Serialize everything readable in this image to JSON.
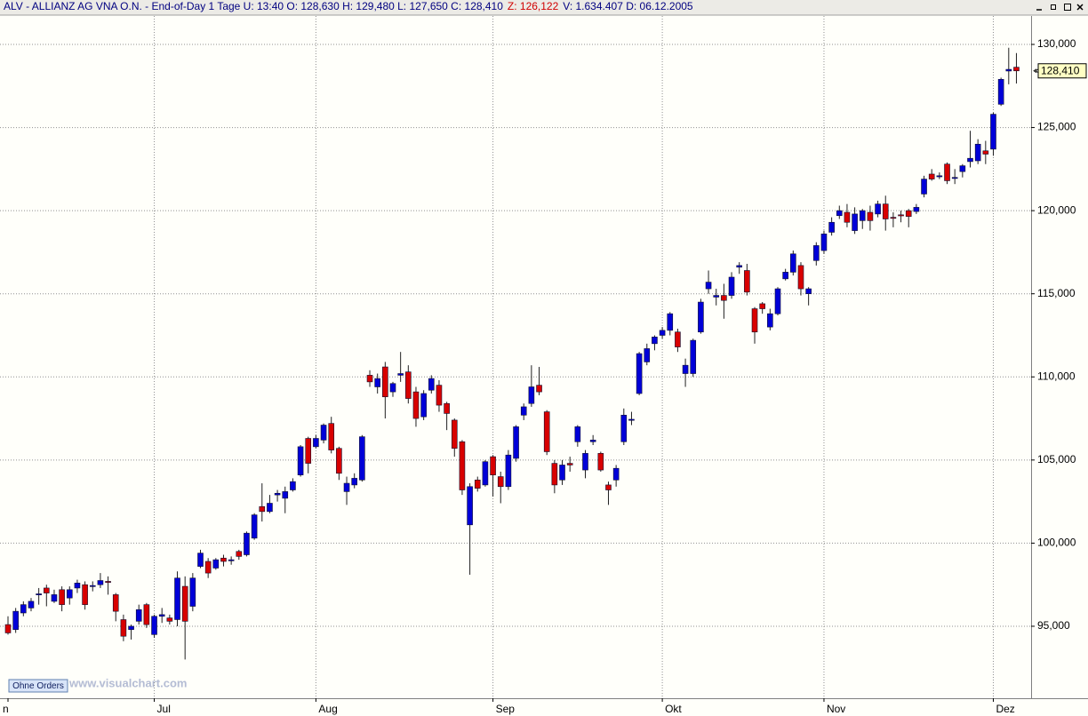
{
  "chart_data": {
    "type": "candlestick",
    "title": "ALV - ALLIANZ AG VNA O.N. - End-of-Day 1 Tage U: 13:40 O: 128,630 H: 129,480 L: 127,650 C: 128,410",
    "title_z": "Z: 126,122",
    "title_tail": "V: 1.634.407 D: 06.12.2005",
    "button": "Ohne Orders",
    "watermark": "www.visualchart.com",
    "up_color": "#0000d8",
    "down_color": "#d80000",
    "grid": true,
    "ylim": [
      90.67,
      131.71
    ],
    "yticks": [
      {
        "value": 95,
        "label": "95,000"
      },
      {
        "value": 100,
        "label": "100,000"
      },
      {
        "value": 105,
        "label": "105,000"
      },
      {
        "value": 110,
        "label": "110,000"
      },
      {
        "value": 115,
        "label": "115,000"
      },
      {
        "value": 120,
        "label": "120,000"
      },
      {
        "value": 125,
        "label": "125,000"
      },
      {
        "value": 130,
        "label": "130,000"
      }
    ],
    "last_price": {
      "value": 128.41,
      "label": "128,410"
    },
    "categories": [
      "n",
      null,
      null,
      null,
      null,
      null,
      null,
      null,
      null,
      null,
      null,
      null,
      null,
      null,
      null,
      null,
      null,
      null,
      null,
      "Jul",
      null,
      null,
      null,
      null,
      null,
      null,
      null,
      null,
      null,
      null,
      null,
      null,
      null,
      null,
      null,
      null,
      null,
      null,
      null,
      null,
      "Aug",
      null,
      null,
      null,
      null,
      null,
      null,
      null,
      null,
      null,
      null,
      null,
      null,
      null,
      null,
      null,
      null,
      null,
      null,
      null,
      null,
      null,
      null,
      "Sep",
      null,
      null,
      null,
      null,
      null,
      null,
      null,
      null,
      null,
      null,
      null,
      null,
      null,
      null,
      null,
      null,
      null,
      null,
      null,
      null,
      null,
      "Okt",
      null,
      null,
      null,
      null,
      null,
      null,
      null,
      null,
      null,
      null,
      null,
      null,
      null,
      null,
      null,
      null,
      null,
      null,
      null,
      null,
      "Nov",
      null,
      null,
      null,
      null,
      null,
      null,
      null,
      null,
      null,
      null,
      null,
      null,
      null,
      null,
      null,
      null,
      null,
      null,
      null,
      null,
      null,
      "Dez",
      null,
      null,
      null
    ],
    "open": [
      95.1,
      94.8,
      95.8,
      96.1,
      96.9,
      97.3,
      96.5,
      97.2,
      96.7,
      97.3,
      97.5,
      97.4,
      97.5,
      97.7,
      96.9,
      95.4,
      94.8,
      95.3,
      96.3,
      94.5,
      95.6,
      95.5,
      95.4,
      97.4,
      96.2,
      98.6,
      98.9,
      98.5,
      99.1,
      98.95,
      99.5,
      99.3,
      100.3,
      102.2,
      101.9,
      102.9,
      102.7,
      103.2,
      104.1,
      106.3,
      105.8,
      106.2,
      107.2,
      105.7,
      103.1,
      103.5,
      103.8,
      110.1,
      109.4,
      110.6,
      109.1,
      110.1,
      110.3,
      109.1,
      107.6,
      109.2,
      109.5,
      108.4,
      107.4,
      106.1,
      101.1,
      103.8,
      103.5,
      105.2,
      104.0,
      103.4,
      105.1,
      107.7,
      108.4,
      109.5,
      107.9,
      104.8,
      103.8,
      104.8,
      106.1,
      104.4,
      106.1,
      105.4,
      103.5,
      103.8,
      106.1,
      107.4,
      109.0,
      110.9,
      112.0,
      112.5,
      112.8,
      112.7,
      110.2,
      110.2,
      112.7,
      115.3,
      114.8,
      114.9,
      114.9,
      116.6,
      116.4,
      114.1,
      114.4,
      113.0,
      113.8,
      115.9,
      116.3,
      116.7,
      115.0,
      117.0,
      117.6,
      118.7,
      119.7,
      119.9,
      118.8,
      119.4,
      119.9,
      119.8,
      120.4,
      119.6,
      119.75,
      120.0,
      119.95,
      121.0,
      122.2,
      122.05,
      122.8,
      121.95,
      122.35,
      122.95,
      123.0,
      123.6,
      123.7,
      126.4,
      128.4,
      128.63
    ],
    "high": [
      95.6,
      96.1,
      96.5,
      96.7,
      97.3,
      97.5,
      97.2,
      97.4,
      97.4,
      97.8,
      97.7,
      97.7,
      98.2,
      98.0,
      97.0,
      95.7,
      95.1,
      96.3,
      96.4,
      95.7,
      96.1,
      95.7,
      98.3,
      98.0,
      98.2,
      99.6,
      99.1,
      99.1,
      99.3,
      99.2,
      99.6,
      100.7,
      101.8,
      103.6,
      102.9,
      103.2,
      103.4,
      103.9,
      105.9,
      106.4,
      106.5,
      107.2,
      107.6,
      105.8,
      104.0,
      104.2,
      106.5,
      110.4,
      110.2,
      110.9,
      109.7,
      111.5,
      110.7,
      109.4,
      109.2,
      110.1,
      109.8,
      108.5,
      107.5,
      106.2,
      103.6,
      104.0,
      105.0,
      105.3,
      104.3,
      105.6,
      107.1,
      108.4,
      110.7,
      110.6,
      108.0,
      105.0,
      105.0,
      105.2,
      107.1,
      105.6,
      106.5,
      105.5,
      103.7,
      104.7,
      108.1,
      107.9,
      111.5,
      112.0,
      112.5,
      113.0,
      113.9,
      112.9,
      111.1,
      112.3,
      114.7,
      116.4,
      115.3,
      115.6,
      116.3,
      116.9,
      116.8,
      114.2,
      114.5,
      114.1,
      115.4,
      116.5,
      117.6,
      116.9,
      115.4,
      118.1,
      118.8,
      119.6,
      120.3,
      120.4,
      120.2,
      120.1,
      120.3,
      120.6,
      120.9,
      119.9,
      120.0,
      120.1,
      120.4,
      122.1,
      122.5,
      122.3,
      122.9,
      122.5,
      122.8,
      124.8,
      124.3,
      124.2,
      125.9,
      128.0,
      129.8,
      129.48
    ],
    "low": [
      94.5,
      94.6,
      95.6,
      95.9,
      96.3,
      96.2,
      96.4,
      95.9,
      96.3,
      97.0,
      96.0,
      97.1,
      97.3,
      96.9,
      95.3,
      94.1,
      94.2,
      95.1,
      94.9,
      94.3,
      95.2,
      95.1,
      95.0,
      93.0,
      95.9,
      98.5,
      97.9,
      98.4,
      98.6,
      98.7,
      99.0,
      99.2,
      100.2,
      101.3,
      101.8,
      102.5,
      101.8,
      103.1,
      104.0,
      104.2,
      105.7,
      106.0,
      105.4,
      103.8,
      102.3,
      103.3,
      103.7,
      109.4,
      109.0,
      107.5,
      108.8,
      109.7,
      108.4,
      107.0,
      107.4,
      109.0,
      107.9,
      106.8,
      105.2,
      102.9,
      98.1,
      103.1,
      103.4,
      102.8,
      102.4,
      103.2,
      104.9,
      107.4,
      108.2,
      108.9,
      105.3,
      103.0,
      103.5,
      104.3,
      105.8,
      103.9,
      105.9,
      104.3,
      102.3,
      103.4,
      105.9,
      107.1,
      108.9,
      110.7,
      111.6,
      112.3,
      112.5,
      111.5,
      109.4,
      110.0,
      112.6,
      115.0,
      114.3,
      113.5,
      114.7,
      116.2,
      114.9,
      112.0,
      113.8,
      112.8,
      113.7,
      115.8,
      116.1,
      114.9,
      114.3,
      116.7,
      117.4,
      118.5,
      119.5,
      119.0,
      118.6,
      118.9,
      118.8,
      119.6,
      118.8,
      119.0,
      119.3,
      119.0,
      119.8,
      120.8,
      121.8,
      121.9,
      121.6,
      121.6,
      122.0,
      122.6,
      122.8,
      122.8,
      123.3,
      126.3,
      127.6,
      127.65
    ],
    "close": [
      94.6,
      95.9,
      96.3,
      96.5,
      96.95,
      97.0,
      96.9,
      96.3,
      97.2,
      97.6,
      96.3,
      97.45,
      97.75,
      97.65,
      95.9,
      94.4,
      95.0,
      96.0,
      95.1,
      95.6,
      95.7,
      95.3,
      97.9,
      95.3,
      97.9,
      99.4,
      98.2,
      99.0,
      98.9,
      99.0,
      99.2,
      100.6,
      101.7,
      101.9,
      102.4,
      103.0,
      103.1,
      103.7,
      105.8,
      104.8,
      106.3,
      107.1,
      105.6,
      104.2,
      103.6,
      103.9,
      106.4,
      109.7,
      109.9,
      108.8,
      109.6,
      110.2,
      108.7,
      107.5,
      109.0,
      109.9,
      108.3,
      107.8,
      105.7,
      103.2,
      103.4,
      103.3,
      104.9,
      104.1,
      103.4,
      105.3,
      107.0,
      108.2,
      109.4,
      109.1,
      105.5,
      103.5,
      104.7,
      104.7,
      107.0,
      105.4,
      106.2,
      104.4,
      103.2,
      104.5,
      107.7,
      107.45,
      111.4,
      111.7,
      112.4,
      112.8,
      113.8,
      111.8,
      110.7,
      112.2,
      114.5,
      115.7,
      114.9,
      114.6,
      116.0,
      116.7,
      115.1,
      112.7,
      114.1,
      113.8,
      115.3,
      116.3,
      117.4,
      115.3,
      115.3,
      117.9,
      118.6,
      119.3,
      120.0,
      119.3,
      119.8,
      120.0,
      119.4,
      120.4,
      119.5,
      119.55,
      119.7,
      119.65,
      120.2,
      121.9,
      121.9,
      122.1,
      121.8,
      122.0,
      122.7,
      123.15,
      124.0,
      123.4,
      125.8,
      127.9,
      128.5,
      128.41
    ]
  }
}
